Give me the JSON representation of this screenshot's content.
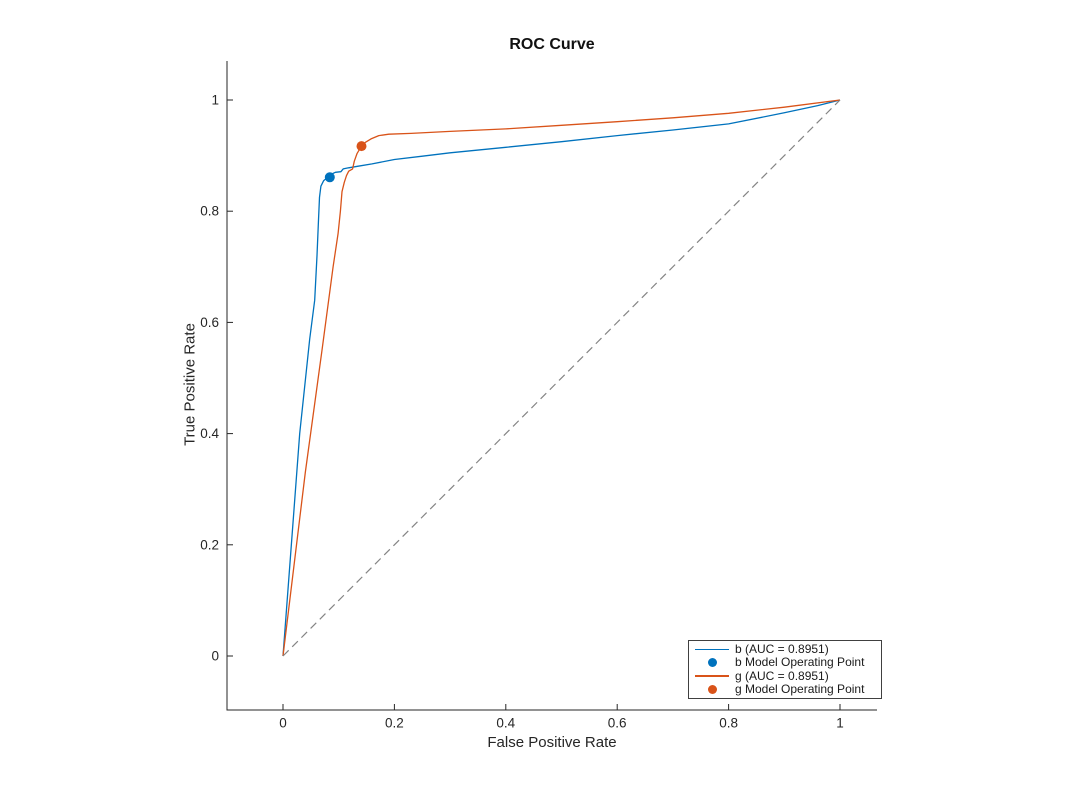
{
  "title": "ROC Curve",
  "axes": {
    "xlabel": "False Positive Rate",
    "ylabel": "True Positive Rate",
    "tick_values": [
      0,
      0.2,
      0.4,
      0.6,
      0.8,
      1
    ],
    "tick_labels": [
      "0",
      "0.2",
      "0.4",
      "0.6",
      "0.8",
      "1"
    ]
  },
  "legend": {
    "position": "south-east",
    "entries": [
      {
        "label": "b (AUC = 0.8951)",
        "marker": "line",
        "color": "#0072BD"
      },
      {
        "label": "b Model Operating Point",
        "marker": "dot",
        "color": "#0072BD"
      },
      {
        "label": "g (AUC = 0.8951)",
        "marker": "line",
        "color": "#D95319"
      },
      {
        "label": "g Model Operating Point",
        "marker": "dot",
        "color": "#D95319"
      }
    ]
  },
  "colors": {
    "b": "#0072BD",
    "g": "#D95319",
    "reference": "#848484",
    "axis": "#262626",
    "background": "#FFFFFF"
  },
  "chart_data": {
    "type": "line",
    "title": "ROC Curve",
    "xlabel": "False Positive Rate",
    "ylabel": "True Positive Rate",
    "xlim": [
      -0.1,
      1.07
    ],
    "ylim": [
      -0.1,
      1.07
    ],
    "grid": false,
    "legend_position": "south-east",
    "series": [
      {
        "id": "b",
        "name": "b (AUC = 0.8951)",
        "auc": 0.8951,
        "color": "#0072BD",
        "line_style": "solid",
        "points": [
          [
            0,
            0
          ],
          [
            0.03,
            0.4
          ],
          [
            0.048,
            0.57
          ],
          [
            0.057,
            0.64
          ],
          [
            0.061,
            0.72
          ],
          [
            0.0635,
            0.78
          ],
          [
            0.0655,
            0.825
          ],
          [
            0.068,
            0.845
          ],
          [
            0.073,
            0.855
          ],
          [
            0.078,
            0.859
          ],
          [
            0.084,
            0.861
          ],
          [
            0.088,
            0.867
          ],
          [
            0.094,
            0.87
          ],
          [
            0.104,
            0.871
          ],
          [
            0.108,
            0.876
          ],
          [
            0.118,
            0.878
          ],
          [
            0.135,
            0.881
          ],
          [
            0.16,
            0.885
          ],
          [
            0.2,
            0.893
          ],
          [
            0.25,
            0.899
          ],
          [
            0.3,
            0.905
          ],
          [
            0.4,
            0.915
          ],
          [
            0.5,
            0.925
          ],
          [
            0.6,
            0.936
          ],
          [
            0.7,
            0.946
          ],
          [
            0.8,
            0.957
          ],
          [
            0.9,
            0.977
          ],
          [
            0.96,
            0.99
          ],
          [
            1,
            1
          ]
        ]
      },
      {
        "id": "g",
        "name": "g (AUC = 0.8951)",
        "auc": 0.8951,
        "color": "#D95319",
        "line_style": "solid",
        "points": [
          [
            0,
            0
          ],
          [
            0.04,
            0.33
          ],
          [
            0.07,
            0.55
          ],
          [
            0.09,
            0.7
          ],
          [
            0.099,
            0.76
          ],
          [
            0.103,
            0.8
          ],
          [
            0.106,
            0.835
          ],
          [
            0.11,
            0.852
          ],
          [
            0.114,
            0.864
          ],
          [
            0.118,
            0.872
          ],
          [
            0.125,
            0.876
          ],
          [
            0.128,
            0.89
          ],
          [
            0.133,
            0.904
          ],
          [
            0.141,
            0.917
          ],
          [
            0.148,
            0.924
          ],
          [
            0.158,
            0.93
          ],
          [
            0.172,
            0.936
          ],
          [
            0.19,
            0.9385
          ],
          [
            0.23,
            0.94
          ],
          [
            0.3,
            0.9435
          ],
          [
            0.4,
            0.948
          ],
          [
            0.5,
            0.9545
          ],
          [
            0.6,
            0.961
          ],
          [
            0.7,
            0.968
          ],
          [
            0.8,
            0.976
          ],
          [
            0.9,
            0.987
          ],
          [
            1,
            1
          ]
        ]
      },
      {
        "id": "reference",
        "name": "random classifier reference",
        "color": "#848484",
        "line_style": "dashed",
        "points": [
          [
            0,
            0
          ],
          [
            1,
            1
          ]
        ]
      }
    ],
    "operating_points": [
      {
        "id": "b-operating-point",
        "name": "b Model Operating Point",
        "color": "#0072BD",
        "point": [
          0.084,
          0.861
        ]
      },
      {
        "id": "g-operating-point",
        "name": "g Model Operating Point",
        "color": "#D95319",
        "point": [
          0.141,
          0.917
        ]
      }
    ]
  }
}
